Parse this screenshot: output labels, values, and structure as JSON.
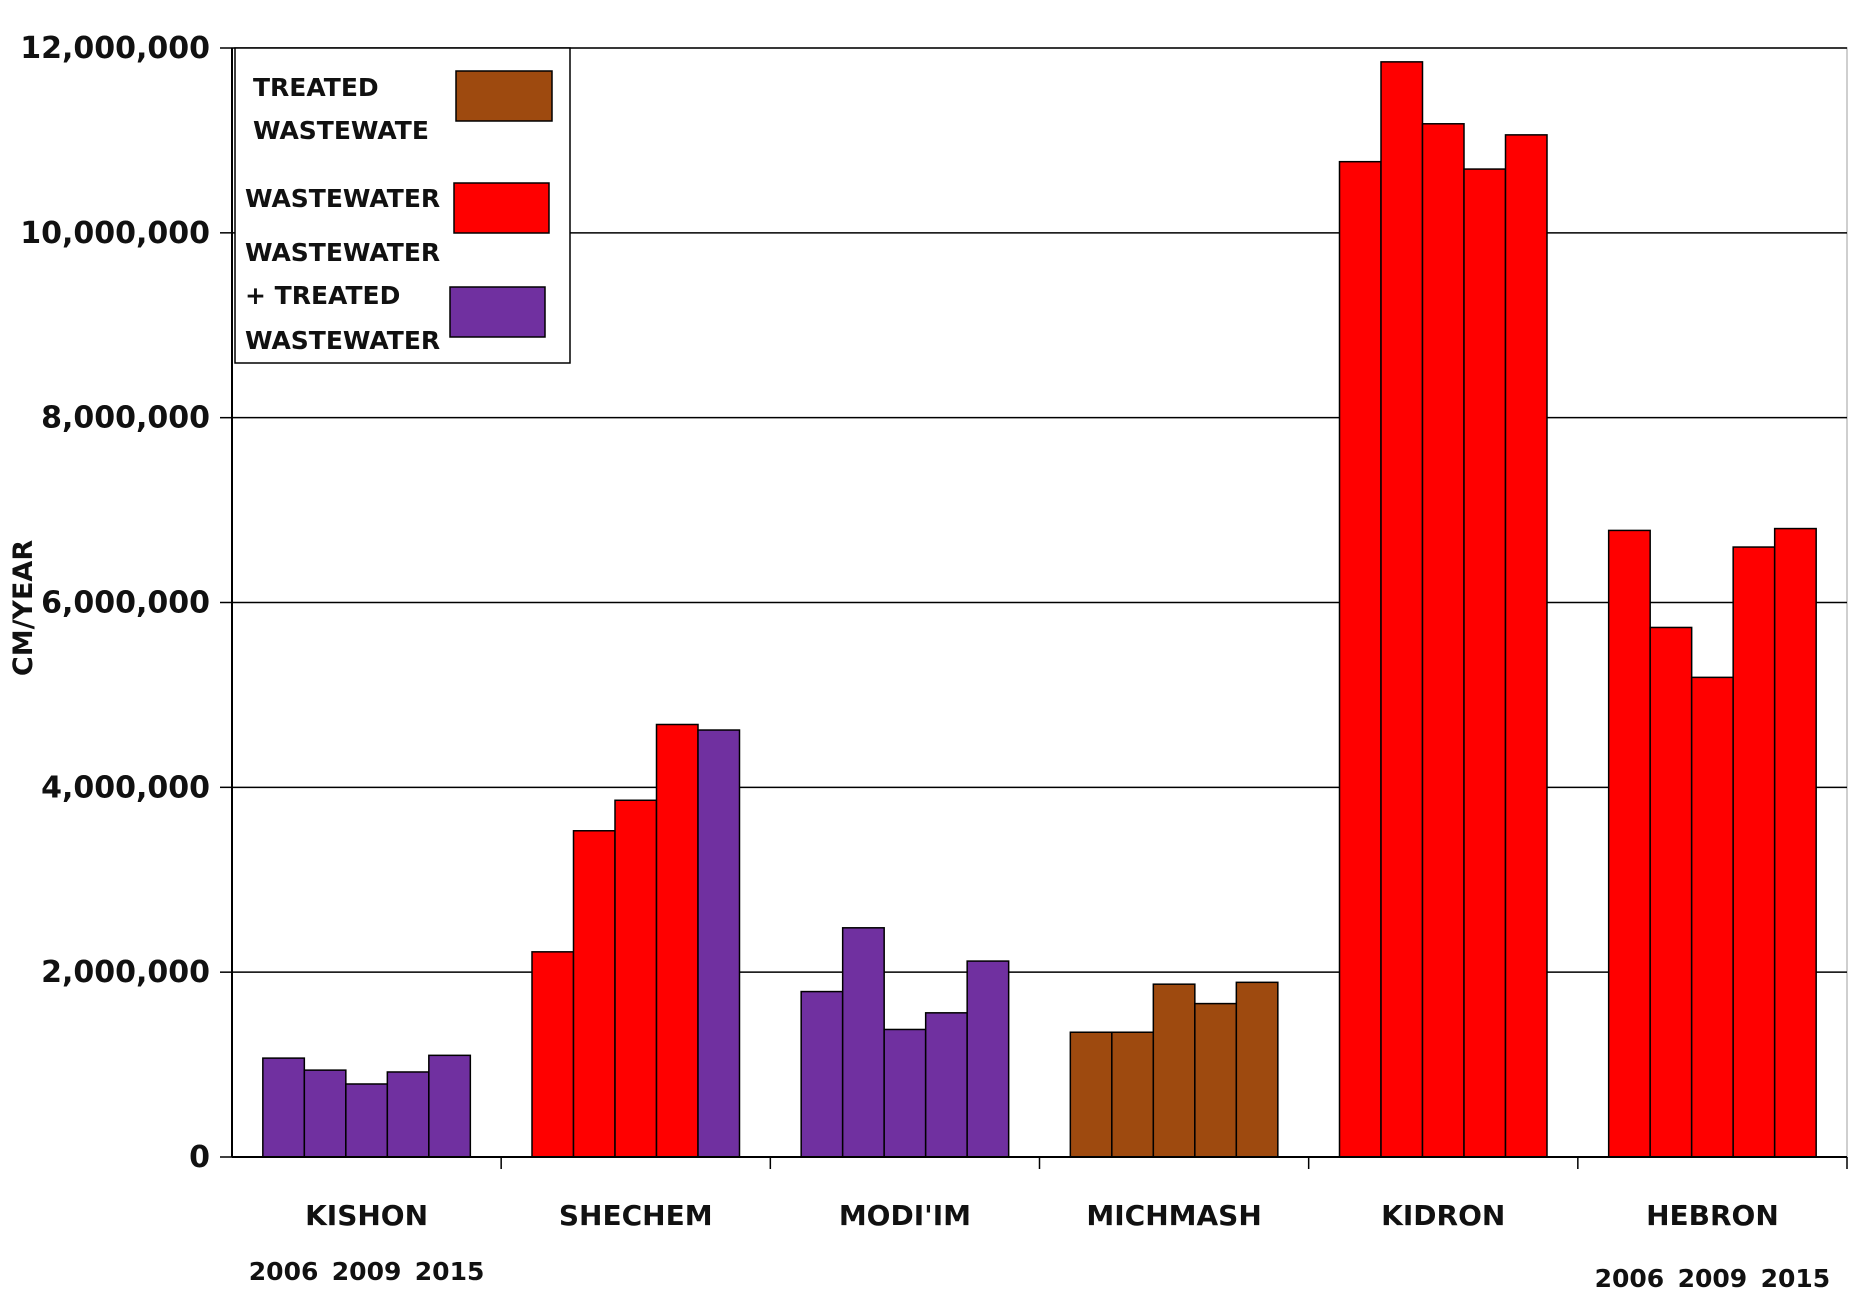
{
  "chart_data": {
    "type": "bar",
    "ylabel": "CM/YEAR",
    "xlabel": "",
    "ylim": [
      0,
      12000000
    ],
    "yticks": [
      0,
      2000000,
      4000000,
      6000000,
      8000000,
      10000000,
      12000000
    ],
    "ytick_labels": [
      "0",
      "2,000,000",
      "4,000,000",
      "6,000,000",
      "8,000,000",
      "10,000,000",
      "12,000,000"
    ],
    "grid": true,
    "legend_position": "top-left",
    "categories": [
      "KISHON",
      "SHECHEM",
      "MODI'IM",
      "MICHMASH",
      "KIDRON",
      "HEBRON"
    ],
    "years": [
      "2006",
      "",
      "2009",
      "",
      "2015"
    ],
    "year_labels_shown": [
      {
        "category": "KISHON",
        "labels": [
          "2006",
          "2009",
          "2015"
        ]
      },
      {
        "category": "HEBRON",
        "labels": [
          "2006",
          "2009",
          "2015"
        ]
      }
    ],
    "legend": [
      {
        "key": "treated",
        "lines": [
          "TREATED",
          "WASTEWATE"
        ],
        "color": "#9e4a0f"
      },
      {
        "key": "wastewater",
        "lines": [
          "WASTEWATER"
        ],
        "color": "#ff0000"
      },
      {
        "key": "mixed",
        "lines": [
          "WASTEWATER",
          "+ TREATED",
          "WASTEWATER"
        ],
        "color": "#7030a0"
      }
    ],
    "groups": [
      {
        "category": "KISHON",
        "bars": [
          {
            "value": 1070000,
            "type": "mixed"
          },
          {
            "value": 940000,
            "type": "mixed"
          },
          {
            "value": 790000,
            "type": "mixed"
          },
          {
            "value": 920000,
            "type": "mixed"
          },
          {
            "value": 1100000,
            "type": "mixed"
          }
        ]
      },
      {
        "category": "SHECHEM",
        "bars": [
          {
            "value": 2220000,
            "type": "wastewater"
          },
          {
            "value": 3530000,
            "type": "wastewater"
          },
          {
            "value": 3860000,
            "type": "wastewater"
          },
          {
            "value": 4680000,
            "type": "wastewater"
          },
          {
            "value": 4620000,
            "type": "mixed"
          }
        ]
      },
      {
        "category": "MODI'IM",
        "bars": [
          {
            "value": 1790000,
            "type": "mixed"
          },
          {
            "value": 2480000,
            "type": "mixed"
          },
          {
            "value": 1380000,
            "type": "mixed"
          },
          {
            "value": 1560000,
            "type": "mixed"
          },
          {
            "value": 2120000,
            "type": "mixed"
          }
        ]
      },
      {
        "category": "MICHMASH",
        "bars": [
          {
            "value": 1350000,
            "type": "treated"
          },
          {
            "value": 1350000,
            "type": "treated"
          },
          {
            "value": 1870000,
            "type": "treated"
          },
          {
            "value": 1660000,
            "type": "treated"
          },
          {
            "value": 1890000,
            "type": "treated"
          }
        ]
      },
      {
        "category": "KIDRON",
        "bars": [
          {
            "value": 10770000,
            "type": "wastewater"
          },
          {
            "value": 11850000,
            "type": "wastewater"
          },
          {
            "value": 11180000,
            "type": "wastewater"
          },
          {
            "value": 10690000,
            "type": "wastewater"
          },
          {
            "value": 11060000,
            "type": "wastewater"
          }
        ]
      },
      {
        "category": "HEBRON",
        "bars": [
          {
            "value": 6780000,
            "type": "wastewater"
          },
          {
            "value": 5730000,
            "type": "wastewater"
          },
          {
            "value": 5190000,
            "type": "wastewater"
          },
          {
            "value": 6600000,
            "type": "wastewater"
          },
          {
            "value": 6800000,
            "type": "wastewater"
          }
        ]
      }
    ]
  }
}
